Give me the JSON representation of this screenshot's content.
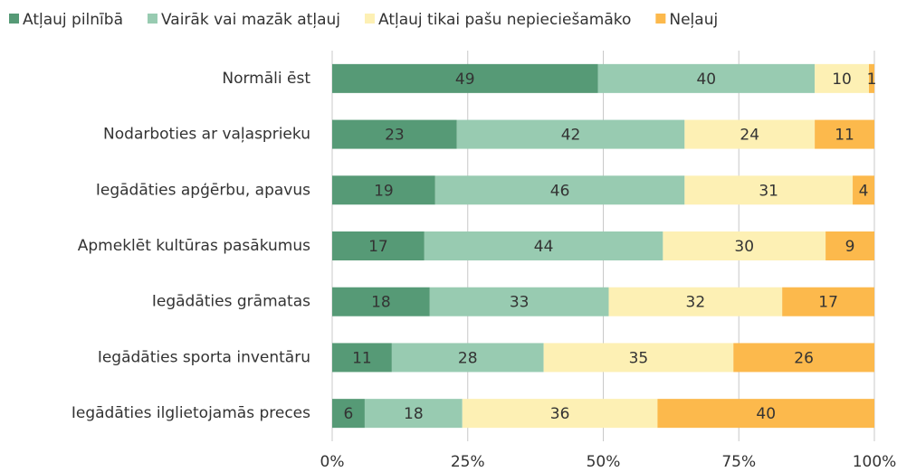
{
  "chart_data": {
    "type": "stacked_bar_horizontal",
    "categories": [
      "Normāli ēst",
      "Nodarboties ar vaļasprieku",
      "Iegādāties apģērbu, apavus",
      "Apmeklēt kultūras pasākumus",
      "Iegādāties grāmatas",
      "Iegādāties sporta inventāru",
      "Iegādāties ilglietojamās preces"
    ],
    "series": [
      {
        "name": "Atļauj pilnībā",
        "color": "#569a76",
        "values": [
          49,
          23,
          19,
          17,
          18,
          11,
          6
        ]
      },
      {
        "name": "Vairāk vai mazāk atļauj",
        "color": "#98cbb1",
        "values": [
          40,
          42,
          46,
          44,
          33,
          28,
          18
        ]
      },
      {
        "name": "Atļauj tikai pašu nepieciešamāko",
        "color": "#fdf0b4",
        "values": [
          10,
          24,
          31,
          30,
          32,
          35,
          36
        ]
      },
      {
        "name": "Neļauj",
        "color": "#fcb94c",
        "values": [
          1,
          11,
          4,
          9,
          17,
          26,
          40
        ]
      }
    ],
    "xlim": [
      0,
      100
    ],
    "xticks": [
      {
        "value": 0,
        "label": "0%"
      },
      {
        "value": 25,
        "label": "25%"
      },
      {
        "value": 50,
        "label": "50%"
      },
      {
        "value": 75,
        "label": "75%"
      },
      {
        "value": 100,
        "label": "100%"
      }
    ],
    "grid": true,
    "legend": "top"
  }
}
